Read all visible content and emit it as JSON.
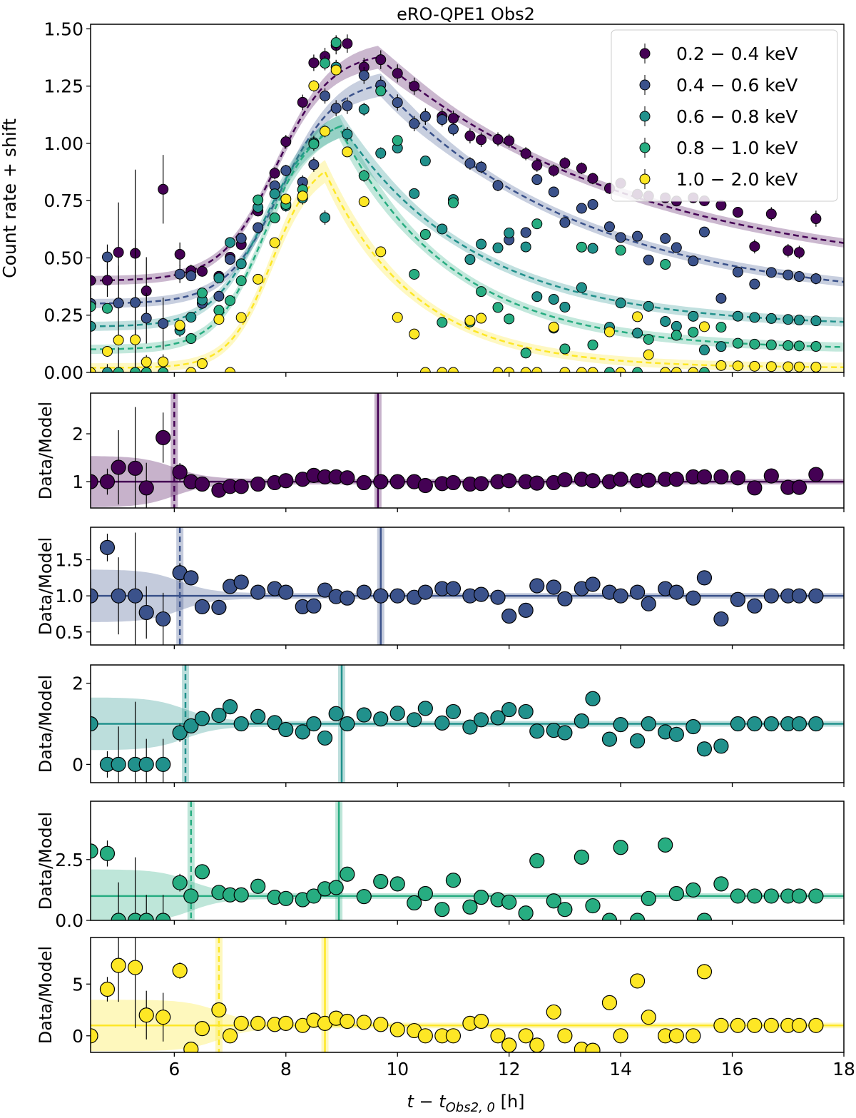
{
  "chart_data": {
    "type": "scatter",
    "title": "eRO-QPE1 Obs2",
    "xlabel": "t − t",
    "xlabel_sub": "Obs2, 0",
    "xlabel_unit": " [h]",
    "xlim": [
      4.5,
      18
    ],
    "xticks": [
      6,
      8,
      10,
      12,
      14,
      16,
      18
    ],
    "colors": [
      "#440154",
      "#3b528b",
      "#21918c",
      "#27ad81",
      "#fde725"
    ],
    "series": [
      {
        "name": "0.2 − 0.4 keV",
        "rise_center": 6.0,
        "peak_time": 9.65,
        "rise_width": 0.9,
        "decay_tau": 4.7,
        "baseline": 0.4,
        "amplitude": 1.0,
        "times": [
          4.5,
          4.8,
          5.0,
          5.3,
          5.5,
          5.8,
          6.1,
          6.3,
          6.5,
          6.8,
          7.0,
          7.2,
          7.5,
          7.8,
          8.0,
          8.3,
          8.5,
          8.7,
          8.9,
          9.1,
          9.4,
          9.7,
          10.0,
          10.3,
          10.5,
          10.8,
          11.0,
          11.3,
          11.5,
          11.8,
          12.0,
          12.3,
          12.5,
          12.8,
          13.0,
          13.3,
          13.5,
          13.8,
          14.0,
          14.3,
          14.5,
          14.8,
          15.0,
          15.3,
          15.5,
          15.8,
          16.1,
          16.4,
          16.7,
          17.0,
          17.2,
          17.5
        ],
        "ratio": [
          1.0,
          1.0,
          1.3,
          1.28,
          0.87,
          1.92,
          1.2,
          1.0,
          0.95,
          0.82,
          0.9,
          0.9,
          0.95,
          0.98,
          1.02,
          1.05,
          1.13,
          1.1,
          1.1,
          1.08,
          0.98,
          1.0,
          1.0,
          1.0,
          0.92,
          0.96,
          0.98,
          0.95,
          0.96,
          1.0,
          1.02,
          1.0,
          0.97,
          0.98,
          1.04,
          1.05,
          1.02,
          1.0,
          1.05,
          1.02,
          1.03,
          1.05,
          1.05,
          1.1,
          1.1,
          1.1,
          1.08,
          0.87,
          1.12,
          0.88,
          0.88,
          1.15
        ],
        "ratio_err": [
          0.3,
          0.3,
          0.9,
          1.5,
          0.6,
          0.6,
          0.2,
          0.1,
          0.08,
          0.06,
          0.05,
          0.05,
          0.05,
          0.05,
          0.05,
          0.05,
          0.05,
          0.05,
          0.05,
          0.05,
          0.05,
          0.05,
          0.05,
          0.05,
          0.05,
          0.05,
          0.05,
          0.05,
          0.05,
          0.05,
          0.05,
          0.05,
          0.05,
          0.05,
          0.05,
          0.05,
          0.05,
          0.05,
          0.05,
          0.05,
          0.05,
          0.05,
          0.05,
          0.05,
          0.05,
          0.05,
          0.05,
          0.08,
          0.08,
          0.08,
          0.08,
          0.1
        ]
      },
      {
        "name": "0.4 − 0.6 keV",
        "rise_center": 6.1,
        "peak_time": 9.7,
        "rise_width": 0.9,
        "decay_tau": 3.6,
        "baseline": 0.3,
        "amplitude": 0.98,
        "times": [
          4.5,
          4.8,
          5.0,
          5.3,
          5.5,
          5.8,
          6.1,
          6.3,
          6.5,
          6.8,
          7.0,
          7.2,
          7.5,
          7.8,
          8.0,
          8.3,
          8.5,
          8.7,
          8.9,
          9.1,
          9.4,
          9.7,
          10.0,
          10.3,
          10.5,
          10.8,
          11.0,
          11.3,
          11.5,
          11.8,
          12.0,
          12.3,
          12.5,
          12.8,
          13.0,
          13.3,
          13.5,
          13.8,
          14.0,
          14.3,
          14.5,
          14.8,
          15.0,
          15.3,
          15.5,
          15.8,
          16.1,
          16.4,
          16.7,
          17.0,
          17.2,
          17.5
        ],
        "ratio": [
          1.0,
          1.67,
          1.0,
          1.0,
          0.77,
          0.68,
          1.32,
          1.25,
          0.85,
          0.84,
          1.13,
          1.19,
          1.05,
          1.1,
          1.05,
          0.85,
          0.86,
          1.08,
          0.99,
          0.97,
          1.05,
          1.0,
          1.0,
          0.98,
          1.05,
          1.1,
          1.1,
          1.0,
          1.02,
          0.98,
          0.72,
          0.8,
          1.14,
          1.12,
          0.96,
          1.1,
          1.16,
          1.05,
          1.0,
          1.05,
          0.89,
          1.1,
          1.05,
          0.97,
          1.25,
          0.68,
          0.95,
          0.86,
          1.0,
          1.0,
          1.0,
          1.0
        ],
        "ratio_err": [
          0.3,
          0.3,
          0.9,
          1.5,
          0.6,
          0.6,
          0.2,
          0.1,
          0.08,
          0.06,
          0.05,
          0.05,
          0.05,
          0.05,
          0.05,
          0.05,
          0.05,
          0.05,
          0.05,
          0.05,
          0.05,
          0.05,
          0.05,
          0.05,
          0.05,
          0.05,
          0.05,
          0.05,
          0.05,
          0.05,
          0.05,
          0.05,
          0.05,
          0.05,
          0.05,
          0.05,
          0.05,
          0.05,
          0.05,
          0.05,
          0.05,
          0.05,
          0.05,
          0.05,
          0.05,
          0.05,
          0.05,
          0.08,
          0.08,
          0.08,
          0.08,
          0.1
        ]
      },
      {
        "name": "0.6 − 0.8 keV",
        "rise_center": 6.2,
        "peak_time": 9.0,
        "rise_width": 0.85,
        "decay_tau": 2.4,
        "baseline": 0.2,
        "amplitude": 0.92,
        "times": [
          4.5,
          4.8,
          5.0,
          5.3,
          5.5,
          5.8,
          6.1,
          6.3,
          6.5,
          6.8,
          7.0,
          7.2,
          7.5,
          7.8,
          8.0,
          8.3,
          8.5,
          8.7,
          8.9,
          9.1,
          9.4,
          9.7,
          10.0,
          10.3,
          10.5,
          10.8,
          11.0,
          11.3,
          11.5,
          11.8,
          12.0,
          12.3,
          12.5,
          12.8,
          13.0,
          13.3,
          13.5,
          13.8,
          14.0,
          14.3,
          14.5,
          14.8,
          15.0,
          15.3,
          15.5,
          15.8,
          16.1,
          16.4,
          16.7,
          17.0,
          17.2,
          17.5
        ],
        "ratio": [
          1.0,
          0.0,
          0.0,
          0.0,
          0.0,
          0.0,
          0.78,
          0.95,
          1.13,
          1.21,
          1.42,
          1.0,
          1.18,
          1.03,
          0.86,
          0.8,
          1.0,
          0.65,
          1.25,
          1.0,
          1.22,
          1.12,
          1.26,
          1.1,
          1.38,
          1.02,
          1.3,
          0.92,
          1.1,
          1.15,
          1.35,
          1.3,
          0.82,
          0.84,
          0.78,
          1.07,
          1.62,
          0.62,
          0.98,
          0.58,
          1.0,
          0.8,
          0.74,
          0.93,
          0.38,
          0.45,
          1.0,
          1.0,
          1.0,
          1.0,
          1.0,
          1.0
        ],
        "ratio_err": [
          0.3,
          0.3,
          0.9,
          1.5,
          0.6,
          0.6,
          0.2,
          0.1,
          0.08,
          0.06,
          0.05,
          0.05,
          0.05,
          0.05,
          0.05,
          0.05,
          0.05,
          0.05,
          0.05,
          0.05,
          0.05,
          0.05,
          0.05,
          0.05,
          0.05,
          0.05,
          0.05,
          0.05,
          0.05,
          0.05,
          0.05,
          0.05,
          0.05,
          0.05,
          0.05,
          0.05,
          0.05,
          0.05,
          0.05,
          0.05,
          0.05,
          0.05,
          0.05,
          0.05,
          0.05,
          0.05,
          0.05,
          0.08,
          0.08,
          0.08,
          0.08,
          0.1
        ]
      },
      {
        "name": "0.8 − 1.0 keV",
        "rise_center": 6.3,
        "peak_time": 8.95,
        "rise_width": 0.8,
        "decay_tau": 2.0,
        "baseline": 0.1,
        "amplitude": 1.02,
        "times": [
          4.5,
          4.8,
          5.0,
          5.3,
          5.5,
          5.8,
          6.1,
          6.3,
          6.5,
          6.8,
          7.0,
          7.2,
          7.5,
          7.8,
          8.0,
          8.3,
          8.5,
          8.7,
          8.9,
          9.1,
          9.4,
          9.7,
          10.0,
          10.3,
          10.5,
          10.8,
          11.0,
          11.3,
          11.5,
          11.8,
          12.0,
          12.3,
          12.5,
          12.8,
          13.0,
          13.3,
          13.5,
          13.8,
          14.0,
          14.3,
          14.5,
          14.8,
          15.0,
          15.3,
          15.5,
          15.8,
          16.1,
          16.4,
          16.7,
          17.0,
          17.2,
          17.5
        ],
        "ratio": [
          2.85,
          2.75,
          0.0,
          0.0,
          0.0,
          0.0,
          1.55,
          1.0,
          2.0,
          1.15,
          1.05,
          1.05,
          1.4,
          0.95,
          0.9,
          0.85,
          1.0,
          1.3,
          1.35,
          1.9,
          0.98,
          1.6,
          1.5,
          0.72,
          1.1,
          0.45,
          1.65,
          0.55,
          0.95,
          0.85,
          0.75,
          0.3,
          2.45,
          0.8,
          0.45,
          2.6,
          0.6,
          0.0,
          3.0,
          0.0,
          0.9,
          3.1,
          1.1,
          1.25,
          0.0,
          1.5,
          1.0,
          1.0,
          1.0,
          1.0,
          1.0,
          1.0
        ],
        "ratio_err": [
          0.3,
          0.3,
          0.9,
          1.5,
          0.6,
          0.6,
          0.2,
          0.1,
          0.08,
          0.06,
          0.05,
          0.05,
          0.05,
          0.05,
          0.05,
          0.05,
          0.05,
          0.05,
          0.05,
          0.05,
          0.05,
          0.05,
          0.05,
          0.05,
          0.05,
          0.05,
          0.05,
          0.05,
          0.05,
          0.05,
          0.05,
          0.05,
          0.05,
          0.05,
          0.05,
          0.05,
          0.05,
          0.05,
          0.05,
          0.05,
          0.05,
          0.05,
          0.05,
          0.05,
          0.05,
          0.05,
          0.05,
          0.08,
          0.08,
          0.08,
          0.08,
          0.1
        ]
      },
      {
        "name": "1.0 − 2.0 keV",
        "rise_center": 6.8,
        "peak_time": 8.7,
        "rise_width": 0.7,
        "decay_tau": 1.6,
        "baseline": 0.02,
        "amplitude": 0.93,
        "times": [
          4.5,
          4.8,
          5.0,
          5.3,
          5.5,
          5.8,
          6.1,
          6.3,
          6.5,
          6.8,
          7.0,
          7.2,
          7.5,
          7.8,
          8.0,
          8.3,
          8.5,
          8.7,
          8.9,
          9.1,
          9.4,
          9.7,
          10.0,
          10.3,
          10.5,
          10.8,
          11.0,
          11.3,
          11.5,
          11.8,
          12.0,
          12.3,
          12.5,
          12.8,
          13.0,
          13.3,
          13.5,
          13.8,
          14.0,
          14.3,
          14.5,
          14.8,
          15.0,
          15.3,
          15.5,
          15.8,
          16.1,
          16.4,
          16.7,
          17.0,
          17.2,
          17.5
        ],
        "ratio": [
          0.0,
          4.5,
          6.8,
          6.6,
          2.0,
          1.8,
          6.3,
          -1.3,
          0.7,
          2.5,
          0.0,
          1.2,
          1.2,
          1.1,
          1.2,
          1.0,
          1.5,
          1.2,
          1.7,
          1.4,
          1.3,
          1.1,
          0.6,
          0.5,
          0.0,
          0.0,
          0.0,
          1.2,
          1.4,
          0.0,
          -0.9,
          0.0,
          -0.9,
          2.3,
          0.0,
          -1.3,
          -1.4,
          3.2,
          0.0,
          5.3,
          1.8,
          0.0,
          0.0,
          0.0,
          6.2,
          1.0,
          1.0,
          1.0,
          1.0,
          1.0,
          1.0,
          1.0
        ],
        "ratio_err": [
          0.3,
          0.3,
          0.9,
          1.5,
          0.6,
          0.6,
          0.2,
          0.1,
          0.08,
          0.06,
          0.05,
          0.05,
          0.05,
          0.05,
          0.05,
          0.05,
          0.05,
          0.05,
          0.05,
          0.05,
          0.05,
          0.05,
          0.05,
          0.05,
          0.05,
          0.05,
          0.05,
          0.05,
          0.05,
          0.05,
          0.05,
          0.05,
          0.05,
          0.05,
          0.05,
          0.05,
          0.05,
          0.05,
          0.05,
          0.05,
          0.05,
          0.05,
          0.05,
          0.05,
          0.05,
          0.05,
          0.05,
          0.08,
          0.08,
          0.08,
          0.08,
          0.1
        ]
      }
    ],
    "panels": [
      {
        "name": "lightcurve",
        "ylabel": "Count rate + shift",
        "ylim": [
          0,
          1.52
        ],
        "yticks": [
          0.0,
          0.25,
          0.5,
          0.75,
          1.0,
          1.25,
          1.5
        ],
        "ytick_labels": [
          "0.00",
          "0.25",
          "0.50",
          "0.75",
          "1.00",
          "1.25",
          "1.50"
        ],
        "legend_loc": "top-right"
      },
      {
        "name": "ratio-0.2-0.4",
        "ylabel": "Data/Model",
        "ylim": [
          0.45,
          2.85
        ],
        "yticks": [
          1,
          2
        ],
        "ytick_labels": [
          "1",
          "2"
        ]
      },
      {
        "name": "ratio-0.4-0.6",
        "ylabel": "Data/Model",
        "ylim": [
          0.32,
          1.95
        ],
        "yticks": [
          0.5,
          1.0,
          1.5
        ],
        "ytick_labels": [
          "0.5",
          "1.0",
          "1.5"
        ]
      },
      {
        "name": "ratio-0.6-0.8",
        "ylabel": "Data/Model",
        "ylim": [
          -0.45,
          2.45
        ],
        "yticks": [
          0,
          2
        ],
        "ytick_labels": [
          "0",
          "2"
        ]
      },
      {
        "name": "ratio-0.8-1.0",
        "ylabel": "Data/Model",
        "ylim": [
          0.0,
          4.9
        ],
        "yticks": [
          0.0,
          2.5
        ],
        "ytick_labels": [
          "0.0",
          "2.5"
        ]
      },
      {
        "name": "ratio-1.0-2.0",
        "ylabel": "Data/Model",
        "ylim": [
          -1.6,
          9.5
        ],
        "yticks": [
          0,
          5
        ],
        "ytick_labels": [
          "0",
          "5"
        ]
      }
    ]
  }
}
